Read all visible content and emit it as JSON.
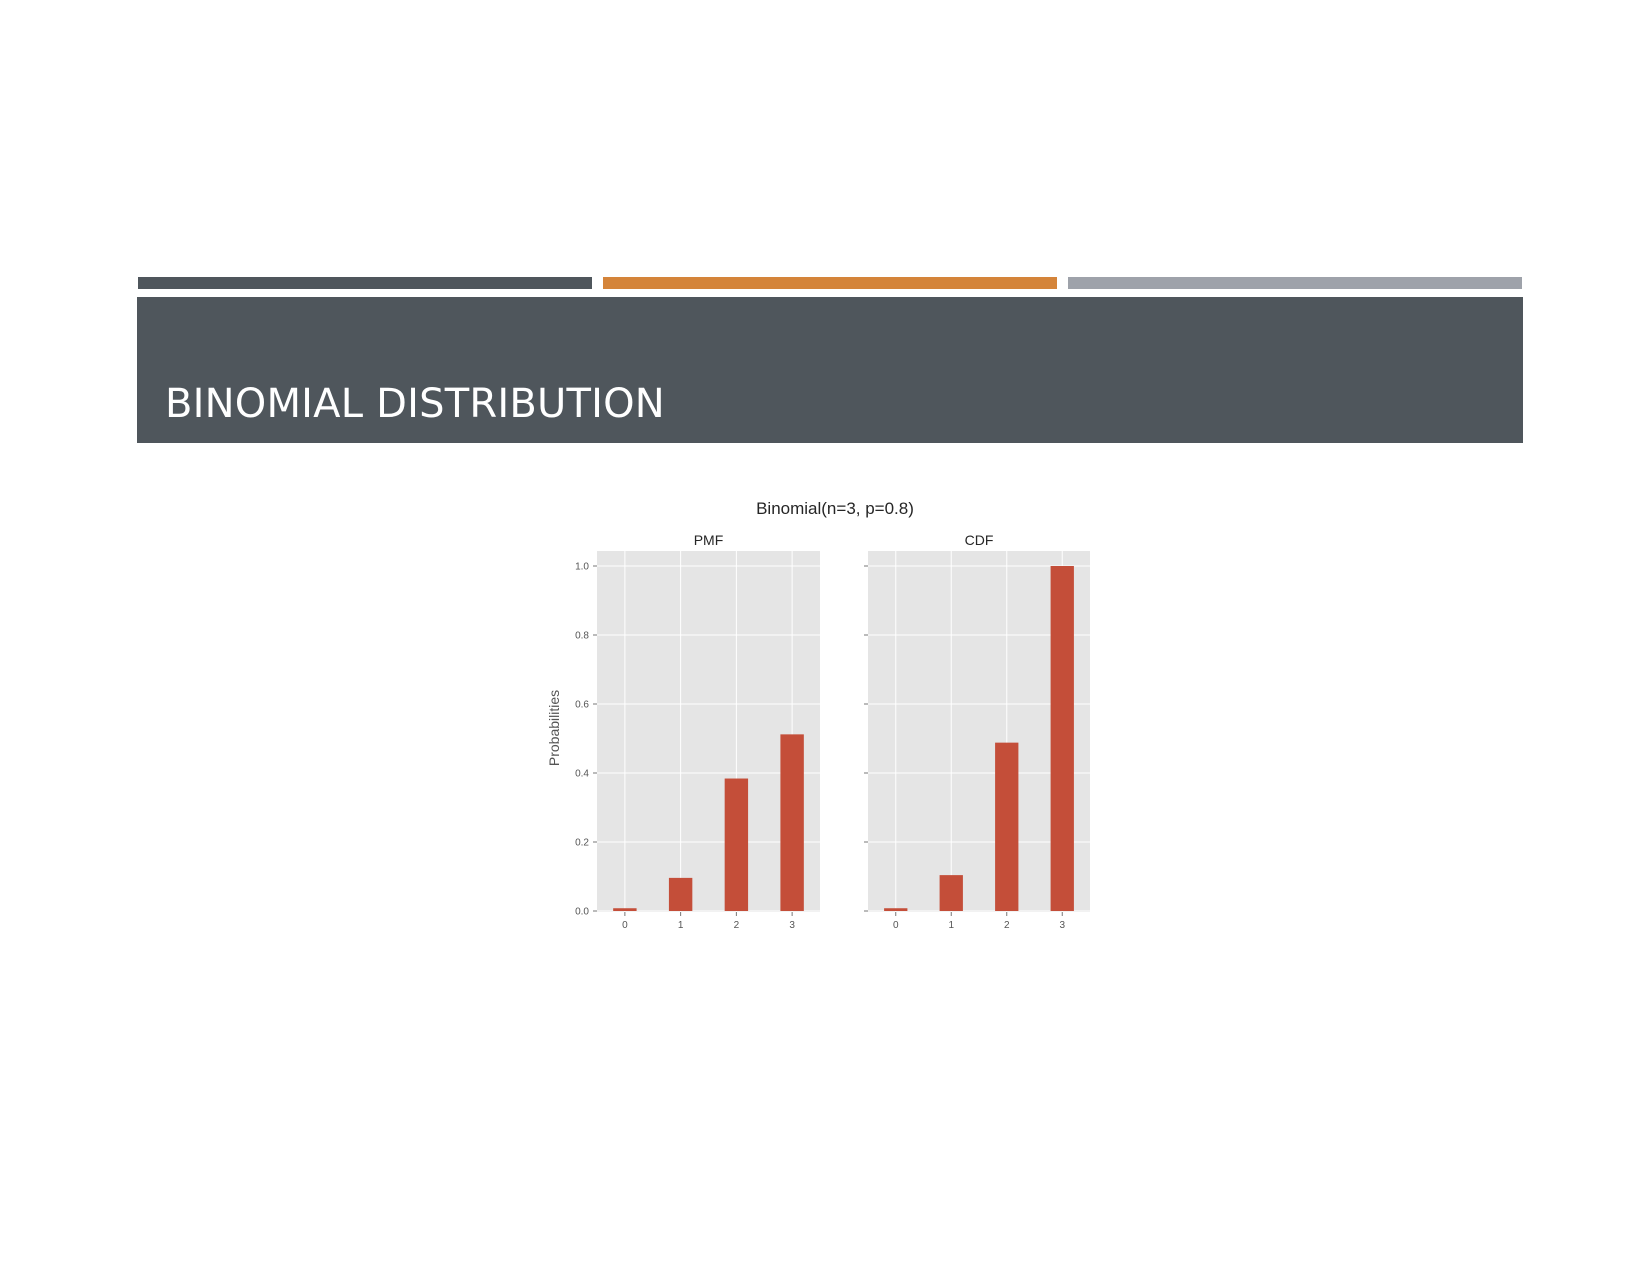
{
  "slide": {
    "title": "BINOMIAL DISTRIBUTION",
    "colors": {
      "title_bar": "#4f565c",
      "stripe_dark": "#4f565c",
      "stripe_orange": "#d4843a",
      "stripe_gray": "#9ea2aa"
    }
  },
  "figure": {
    "title": "Binomial(n=3, p=0.8)"
  },
  "chart_data": [
    {
      "type": "bar",
      "title": "PMF",
      "ylabel": "Probabilities",
      "xlabel": "",
      "categories": [
        "0",
        "1",
        "2",
        "3"
      ],
      "values": [
        0.008,
        0.096,
        0.384,
        0.512
      ],
      "ylim": [
        0,
        1.0
      ],
      "yticks": [
        "0.0",
        "0.2",
        "0.4",
        "0.6",
        "0.8",
        "1.0"
      ],
      "grid": true,
      "bar_color": "#c44e39",
      "background": "#e5e5e5"
    },
    {
      "type": "bar",
      "title": "CDF",
      "ylabel": "",
      "xlabel": "",
      "categories": [
        "0",
        "1",
        "2",
        "3"
      ],
      "values": [
        0.008,
        0.104,
        0.488,
        1.0
      ],
      "ylim": [
        0,
        1.0
      ],
      "grid": true,
      "bar_color": "#c44e39",
      "background": "#e5e5e5"
    }
  ]
}
